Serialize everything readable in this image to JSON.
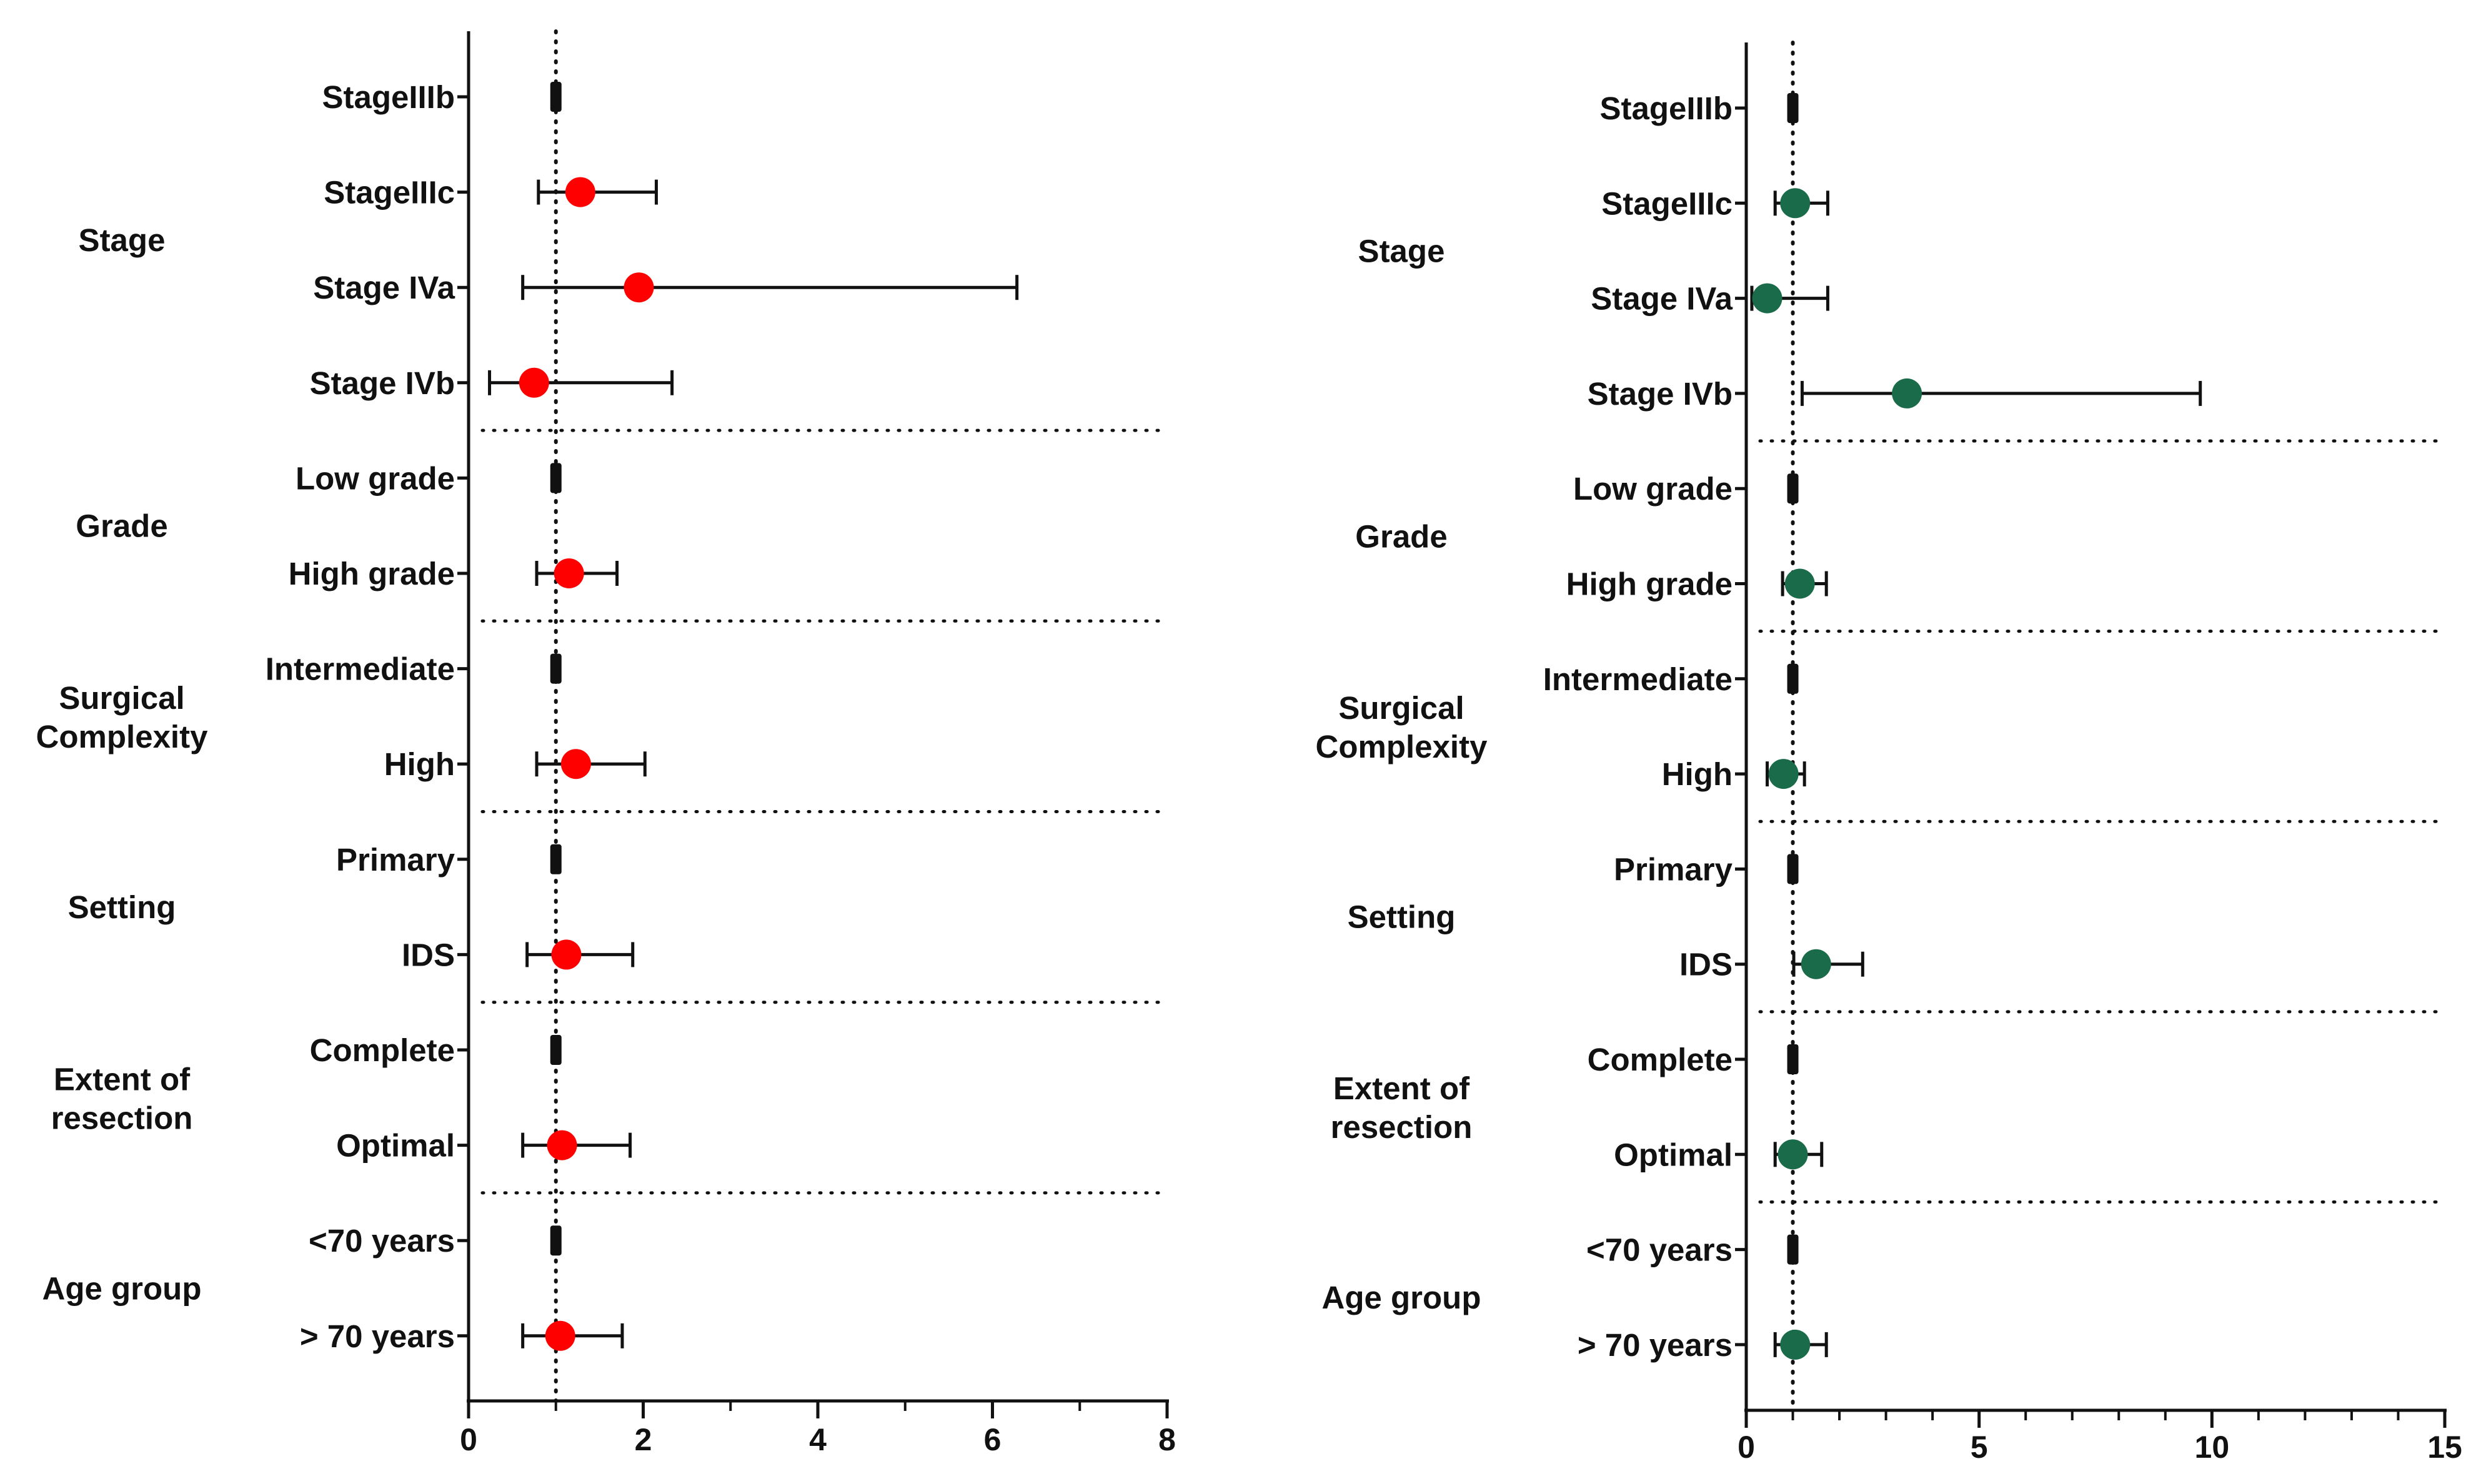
{
  "chart_data": [
    {
      "type": "forest",
      "xlim": [
        0,
        8
      ],
      "xticks": [
        "0",
        "2",
        "4",
        "6",
        "8"
      ],
      "reference_line": 1,
      "marker_color": "#ff0000",
      "groups": [
        {
          "name": "Stage",
          "rows": [
            0,
            1,
            2,
            3
          ]
        },
        {
          "name": "Grade",
          "rows": [
            4,
            5
          ]
        },
        {
          "name": "Surgical Complexity",
          "rows": [
            6,
            7
          ]
        },
        {
          "name": "Setting",
          "rows": [
            8,
            9
          ]
        },
        {
          "name": "Extent of resection",
          "rows": [
            10,
            11
          ]
        },
        {
          "name": "Age group",
          "rows": [
            12,
            13
          ]
        }
      ],
      "rows": [
        {
          "label": "StageIIIb",
          "value": 1,
          "reference": true
        },
        {
          "label": "StageIIIc",
          "value": 1.28,
          "lo": 0.8,
          "hi": 2.15
        },
        {
          "label": "Stage IVa",
          "value": 1.95,
          "lo": 0.62,
          "hi": 6.28
        },
        {
          "label": "Stage IVb",
          "value": 0.75,
          "lo": 0.24,
          "hi": 2.33
        },
        {
          "label": "Low grade",
          "value": 1,
          "reference": true
        },
        {
          "label": "High grade",
          "value": 1.15,
          "lo": 0.78,
          "hi": 1.7
        },
        {
          "label": "Intermediate",
          "value": 1,
          "reference": true
        },
        {
          "label": "High",
          "value": 1.23,
          "lo": 0.78,
          "hi": 2.02
        },
        {
          "label": "Primary",
          "value": 1,
          "reference": true
        },
        {
          "label": "IDS",
          "value": 1.12,
          "lo": 0.67,
          "hi": 1.88
        },
        {
          "label": "Complete",
          "value": 1,
          "reference": true
        },
        {
          "label": "Optimal",
          "value": 1.07,
          "lo": 0.62,
          "hi": 1.85
        },
        {
          "label": "<70 years",
          "value": 1,
          "reference": true
        },
        {
          "label": "> 70 years",
          "value": 1.05,
          "lo": 0.62,
          "hi": 1.76
        }
      ]
    },
    {
      "type": "forest",
      "xlim": [
        0,
        15
      ],
      "xticks": [
        "0",
        "5",
        "10",
        "15"
      ],
      "reference_line": 1,
      "marker_color": "#1a6b4a",
      "groups": [
        {
          "name": "Stage",
          "rows": [
            0,
            1,
            2,
            3
          ]
        },
        {
          "name": "Grade",
          "rows": [
            4,
            5
          ]
        },
        {
          "name": "Surgical Complexity",
          "rows": [
            6,
            7
          ]
        },
        {
          "name": "Setting",
          "rows": [
            8,
            9
          ]
        },
        {
          "name": "Extent of resection",
          "rows": [
            10,
            11
          ]
        },
        {
          "name": "Age group",
          "rows": [
            12,
            13
          ]
        }
      ],
      "rows": [
        {
          "label": "StageIIIb",
          "value": 1,
          "reference": true
        },
        {
          "label": "StageIIIc",
          "value": 1.05,
          "lo": 0.62,
          "hi": 1.75
        },
        {
          "label": "Stage IVa",
          "value": 0.45,
          "lo": 0.12,
          "hi": 1.75
        },
        {
          "label": "Stage IVb",
          "value": 3.45,
          "lo": 1.2,
          "hi": 9.75
        },
        {
          "label": "Low grade",
          "value": 1,
          "reference": true
        },
        {
          "label": "High grade",
          "value": 1.15,
          "lo": 0.78,
          "hi": 1.72
        },
        {
          "label": "Intermediate",
          "value": 1,
          "reference": true
        },
        {
          "label": "High",
          "value": 0.8,
          "lo": 0.45,
          "hi": 1.25
        },
        {
          "label": "Primary",
          "value": 1,
          "reference": true
        },
        {
          "label": "IDS",
          "value": 1.5,
          "lo": 1.02,
          "hi": 2.5
        },
        {
          "label": "Complete",
          "value": 1,
          "reference": true
        },
        {
          "label": "Optimal",
          "value": 1.0,
          "lo": 0.62,
          "hi": 1.62
        },
        {
          "label": "<70 years",
          "value": 1,
          "reference": true
        },
        {
          "label": "> 70 years",
          "value": 1.05,
          "lo": 0.62,
          "hi": 1.72
        }
      ]
    }
  ]
}
